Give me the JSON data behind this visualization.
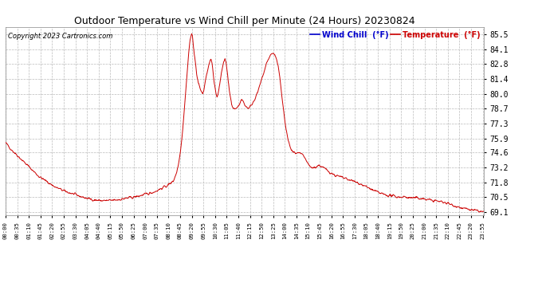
{
  "title": "Outdoor Temperature vs Wind Chill per Minute (24 Hours) 20230824",
  "copyright": "Copyright 2023 Cartronics.com",
  "legend_wind_chill": "Wind Chill  (°F)",
  "legend_temperature": "Temperature  (°F)",
  "yticks": [
    69.1,
    70.5,
    71.8,
    73.2,
    74.6,
    75.9,
    77.3,
    78.7,
    80.0,
    81.4,
    82.8,
    84.1,
    85.5
  ],
  "ymin": 68.8,
  "ymax": 86.2,
  "line_color": "#cc0000",
  "wind_chill_color": "#0000cc",
  "temperature_color": "#cc0000",
  "bg_color": "#ffffff",
  "grid_color": "#bbbbbb",
  "title_color": "#000000",
  "keypoints": [
    [
      0,
      75.5
    ],
    [
      20,
      74.8
    ],
    [
      40,
      74.2
    ],
    [
      60,
      73.6
    ],
    [
      80,
      73.0
    ],
    [
      100,
      72.4
    ],
    [
      120,
      72.0
    ],
    [
      150,
      71.4
    ],
    [
      180,
      71.0
    ],
    [
      210,
      70.7
    ],
    [
      240,
      70.4
    ],
    [
      270,
      70.2
    ],
    [
      290,
      70.15
    ],
    [
      310,
      70.15
    ],
    [
      330,
      70.2
    ],
    [
      350,
      70.3
    ],
    [
      370,
      70.4
    ],
    [
      390,
      70.5
    ],
    [
      410,
      70.65
    ],
    [
      430,
      70.8
    ],
    [
      450,
      71.0
    ],
    [
      470,
      71.3
    ],
    [
      490,
      71.6
    ],
    [
      505,
      72.0
    ],
    [
      515,
      72.8
    ],
    [
      520,
      73.5
    ],
    [
      525,
      74.5
    ],
    [
      530,
      75.8
    ],
    [
      535,
      77.5
    ],
    [
      540,
      79.5
    ],
    [
      545,
      81.5
    ],
    [
      550,
      83.5
    ],
    [
      555,
      85.0
    ],
    [
      558,
      85.4
    ],
    [
      560,
      85.5
    ],
    [
      562,
      85.3
    ],
    [
      565,
      84.5
    ],
    [
      570,
      83.2
    ],
    [
      575,
      81.8
    ],
    [
      580,
      81.0
    ],
    [
      585,
      80.5
    ],
    [
      590,
      80.2
    ],
    [
      593,
      80.0
    ],
    [
      596,
      80.3
    ],
    [
      600,
      81.0
    ],
    [
      605,
      81.8
    ],
    [
      610,
      82.5
    ],
    [
      615,
      83.0
    ],
    [
      618,
      83.2
    ],
    [
      621,
      82.8
    ],
    [
      624,
      82.0
    ],
    [
      627,
      81.2
    ],
    [
      630,
      80.6
    ],
    [
      633,
      80.1
    ],
    [
      636,
      79.8
    ],
    [
      639,
      80.0
    ],
    [
      642,
      80.5
    ],
    [
      645,
      81.2
    ],
    [
      650,
      82.0
    ],
    [
      655,
      82.8
    ],
    [
      660,
      83.3
    ],
    [
      663,
      83.0
    ],
    [
      666,
      82.3
    ],
    [
      670,
      81.2
    ],
    [
      675,
      80.0
    ],
    [
      680,
      79.0
    ],
    [
      685,
      78.7
    ],
    [
      690,
      78.6
    ],
    [
      695,
      78.7
    ],
    [
      700,
      78.9
    ],
    [
      705,
      79.2
    ],
    [
      710,
      79.5
    ],
    [
      715,
      79.3
    ],
    [
      720,
      79.0
    ],
    [
      725,
      78.8
    ],
    [
      730,
      78.7
    ],
    [
      735,
      78.8
    ],
    [
      740,
      79.0
    ],
    [
      745,
      79.3
    ],
    [
      750,
      79.6
    ],
    [
      755,
      79.9
    ],
    [
      760,
      80.3
    ],
    [
      765,
      80.8
    ],
    [
      770,
      81.3
    ],
    [
      775,
      81.8
    ],
    [
      780,
      82.3
    ],
    [
      785,
      82.8
    ],
    [
      790,
      83.2
    ],
    [
      795,
      83.5
    ],
    [
      800,
      83.7
    ],
    [
      805,
      83.8
    ],
    [
      810,
      83.6
    ],
    [
      815,
      83.2
    ],
    [
      820,
      82.5
    ],
    [
      825,
      81.5
    ],
    [
      830,
      80.2
    ],
    [
      835,
      78.8
    ],
    [
      840,
      77.5
    ],
    [
      845,
      76.5
    ],
    [
      850,
      75.8
    ],
    [
      855,
      75.2
    ],
    [
      860,
      74.8
    ],
    [
      865,
      74.6
    ],
    [
      870,
      74.6
    ],
    [
      875,
      74.5
    ],
    [
      880,
      74.5
    ],
    [
      885,
      74.5
    ],
    [
      890,
      74.4
    ],
    [
      895,
      74.3
    ],
    [
      900,
      74.1
    ],
    [
      905,
      73.8
    ],
    [
      910,
      73.5
    ],
    [
      915,
      73.3
    ],
    [
      920,
      73.2
    ],
    [
      925,
      73.2
    ],
    [
      930,
      73.2
    ],
    [
      935,
      73.3
    ],
    [
      940,
      73.4
    ],
    [
      945,
      73.4
    ],
    [
      950,
      73.3
    ],
    [
      955,
      73.2
    ],
    [
      960,
      73.1
    ],
    [
      965,
      73.0
    ],
    [
      970,
      72.9
    ],
    [
      975,
      72.8
    ],
    [
      980,
      72.7
    ],
    [
      985,
      72.6
    ],
    [
      990,
      72.5
    ],
    [
      1000,
      72.4
    ],
    [
      1010,
      72.3
    ],
    [
      1020,
      72.2
    ],
    [
      1030,
      72.1
    ],
    [
      1040,
      72.0
    ],
    [
      1060,
      71.8
    ],
    [
      1080,
      71.5
    ],
    [
      1100,
      71.2
    ],
    [
      1120,
      70.9
    ],
    [
      1140,
      70.7
    ],
    [
      1160,
      70.6
    ],
    [
      1180,
      70.5
    ],
    [
      1200,
      70.5
    ],
    [
      1220,
      70.4
    ],
    [
      1240,
      70.4
    ],
    [
      1260,
      70.3
    ],
    [
      1280,
      70.2
    ],
    [
      1300,
      70.1
    ],
    [
      1320,
      70.0
    ],
    [
      1340,
      69.8
    ],
    [
      1360,
      69.6
    ],
    [
      1380,
      69.4
    ],
    [
      1400,
      69.3
    ],
    [
      1420,
      69.2
    ],
    [
      1439,
      69.1
    ]
  ],
  "tick_step": 35
}
